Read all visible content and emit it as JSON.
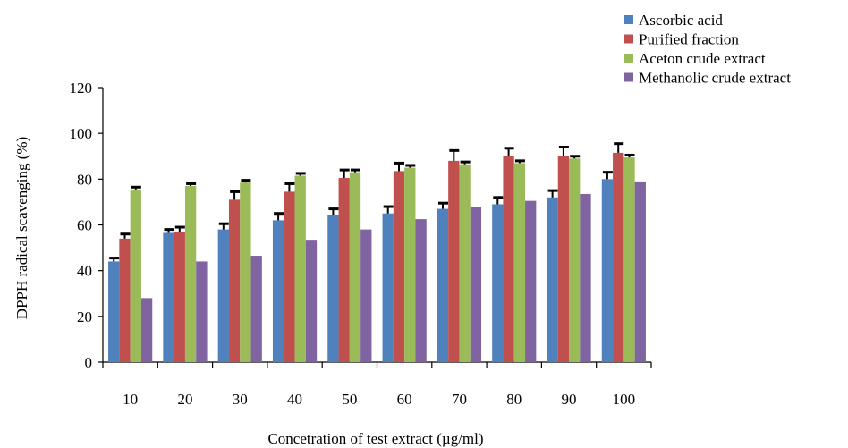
{
  "chart_data": {
    "type": "bar",
    "title": "",
    "xlabel": "Concetration of test extract (µg/ml)",
    "ylabel": "DPPH radical scavenging (%)",
    "ylim": [
      0,
      120
    ],
    "yticks": [
      "0",
      "20",
      "40",
      "60",
      "80",
      "100",
      "120"
    ],
    "categories": [
      "10",
      "20",
      "30",
      "40",
      "50",
      "60",
      "70",
      "80",
      "90",
      "100"
    ],
    "legend_position": "top-right",
    "grid": false,
    "series": [
      {
        "name": "Ascorbic acid",
        "color": "#4F81BD",
        "values": [
          44,
          56.5,
          58,
          62,
          64.5,
          65,
          67,
          69,
          72,
          80
        ],
        "errors": [
          1.5,
          1.5,
          2.5,
          3,
          2.5,
          3,
          2.5,
          3,
          3,
          3
        ]
      },
      {
        "name": "Purified fraction",
        "color": "#C0504D",
        "values": [
          54,
          57,
          71,
          74.5,
          80.5,
          83.5,
          88,
          90,
          90,
          91.5
        ],
        "errors": [
          2,
          2,
          3.5,
          3.5,
          3.5,
          3.5,
          4.5,
          3.5,
          4,
          4
        ]
      },
      {
        "name": "Aceton crude extract",
        "color": "#9BBB59",
        "values": [
          75.5,
          77,
          78.5,
          81.5,
          83,
          85,
          86.5,
          87,
          89,
          89.5
        ],
        "errors": [
          1,
          1,
          1,
          1,
          1,
          1,
          1,
          1,
          1,
          1
        ]
      },
      {
        "name": "Methanolic crude extract",
        "color": "#8064A2",
        "values": [
          28,
          44,
          46.5,
          53.5,
          58,
          62.5,
          68,
          70.5,
          73.5,
          79
        ],
        "errors": [
          0,
          0,
          0,
          0,
          0,
          0,
          0,
          0,
          0,
          0
        ]
      }
    ]
  }
}
